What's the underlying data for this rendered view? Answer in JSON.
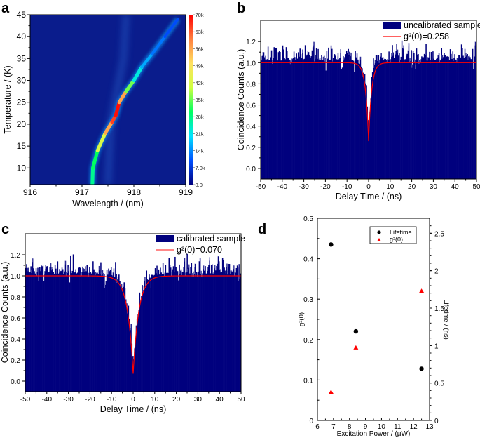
{
  "panel_labels": {
    "a": "a",
    "b": "b",
    "c": "c",
    "d": "d"
  },
  "colors": {
    "histogram": "#00007e",
    "fit": "#ff0000",
    "heatmap_background": "#0a1c8c",
    "lifetime_marker": "#000000",
    "g2_marker": "#ff0000"
  },
  "chart_data": [
    {
      "panel": "a",
      "type": "heatmap",
      "xlabel": "Wavelength / (nm)",
      "ylabel": "Temperature / (K)",
      "xlim": [
        916,
        919
      ],
      "ylim": [
        6.2,
        45
      ],
      "xticks": [
        "916",
        "917",
        "918",
        "919"
      ],
      "yticks": [
        "10",
        "15",
        "20",
        "25",
        "30",
        "35",
        "40",
        "45"
      ],
      "colorbar": {
        "range": [
          0,
          70000
        ],
        "tick_labels": [
          "0.0",
          "7.0k",
          "14k",
          "21k",
          "28k",
          "35k",
          "42k",
          "49k",
          "56k",
          "63k",
          "70k"
        ],
        "colormap": [
          "#00007f",
          "#0050ff",
          "#00e5ff",
          "#00ff60",
          "#d0ff40",
          "#ffe060",
          "#ff8040",
          "#ff0000"
        ]
      },
      "trace": [
        {
          "wavelength": 917.2,
          "temperature": 6.2,
          "intensity": 26000
        },
        {
          "wavelength": 917.21,
          "temperature": 10,
          "intensity": 28000
        },
        {
          "wavelength": 917.3,
          "temperature": 14,
          "intensity": 32000
        },
        {
          "wavelength": 917.45,
          "temperature": 18,
          "intensity": 52000
        },
        {
          "wavelength": 917.58,
          "temperature": 20.5,
          "intensity": 60000
        },
        {
          "wavelength": 917.65,
          "temperature": 22,
          "intensity": 70000
        },
        {
          "wavelength": 917.72,
          "temperature": 25,
          "intensity": 68000
        },
        {
          "wavelength": 917.85,
          "temperature": 27.5,
          "intensity": 45000
        },
        {
          "wavelength": 918.0,
          "temperature": 30,
          "intensity": 26000
        },
        {
          "wavelength": 918.15,
          "temperature": 33,
          "intensity": 18000
        },
        {
          "wavelength": 918.35,
          "temperature": 36,
          "intensity": 14000
        },
        {
          "wavelength": 918.6,
          "temperature": 40,
          "intensity": 11000
        },
        {
          "wavelength": 918.85,
          "temperature": 44,
          "intensity": 8000
        }
      ]
    },
    {
      "panel": "b",
      "type": "bar",
      "xlabel": "Delay Time / (ns)",
      "ylabel": "Coincidence Counts (a.u.)",
      "xlim": [
        -50,
        50
      ],
      "ylim": [
        -0.1,
        1.4
      ],
      "xticks": [
        "-50",
        "-40",
        "-30",
        "-20",
        "-10",
        "0",
        "10",
        "20",
        "30",
        "40",
        "50"
      ],
      "yticks": [
        "0.0",
        "0.2",
        "0.4",
        "0.6",
        "0.8",
        "1.0",
        "1.2"
      ],
      "legend": {
        "histogram": "uncalibrated sample",
        "fit": "g²(0)=0.258",
        "position": "top-right"
      },
      "fit": {
        "g2_0": 0.258,
        "baseline": 1.0
      }
    },
    {
      "panel": "c",
      "type": "bar",
      "xlabel": "Delay Time / (ns)",
      "ylabel": "Coincidence Counts (a.u.)",
      "xlim": [
        -50,
        50
      ],
      "ylim": [
        -0.1,
        1.4
      ],
      "xticks": [
        "-50",
        "-40",
        "-30",
        "-20",
        "-10",
        "0",
        "10",
        "20",
        "30",
        "40",
        "50"
      ],
      "yticks": [
        "0.0",
        "0.2",
        "0.4",
        "0.6",
        "0.8",
        "1.0",
        "1.2"
      ],
      "legend": {
        "histogram": "calibrated sample",
        "fit": "g²(0)=0.070",
        "position": "top-right"
      },
      "fit": {
        "g2_0": 0.07,
        "baseline": 1.0
      }
    },
    {
      "panel": "d",
      "type": "scatter",
      "xlabel": "Excitation Power / (μW)",
      "ylabel": "g²(0)",
      "y2label": "Lifetime / (ns)",
      "xlim": [
        6,
        13
      ],
      "ylim": [
        0,
        0.5
      ],
      "y2lim": [
        0,
        2.7
      ],
      "xticks": [
        "6",
        "7",
        "8",
        "9",
        "10",
        "11",
        "12",
        "13"
      ],
      "yticks": [
        "0",
        "0.1",
        "0.2",
        "0.3",
        "0.4",
        "0.5"
      ],
      "y2ticks": [
        "0",
        "0.5",
        "1",
        "1.5",
        "2",
        "2.5"
      ],
      "legend": {
        "position": "top-right"
      },
      "series": [
        {
          "name": "Lifetime",
          "axis": "right",
          "marker": "circle",
          "x": [
            6.85,
            8.4,
            12.5
          ],
          "y": [
            2.35,
            1.19,
            0.69
          ]
        },
        {
          "name": "g²(0)",
          "axis": "left",
          "marker": "triangle",
          "x": [
            6.85,
            8.4,
            12.5
          ],
          "y": [
            0.07,
            0.18,
            0.32
          ]
        }
      ]
    }
  ]
}
